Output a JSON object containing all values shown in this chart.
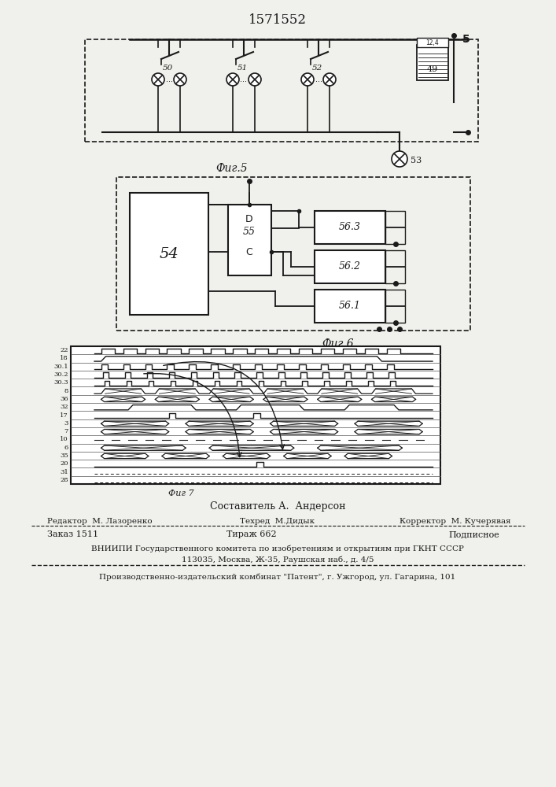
{
  "title": "1571552",
  "fig5_label": "Фиг.5",
  "fig6_label": "Фиг.6",
  "fig7_label": "Фиг 7",
  "composer": "Составитель А.  Андерсон",
  "editor": "Редактор  М. Лазоренко",
  "techred": "Техред  М.Дидык",
  "corrector": "Корректор  М. Кучерявая",
  "order": "Заказ 1511",
  "circulation": "Тираж 662",
  "subscription": "Подписное",
  "vniiipi": "ВНИИПИ Государственного комитета по изобретениям и открытиям при ГКНТ СССР",
  "address": "113035, Москва, Ж-35, Раушская наб., д. 4/5",
  "factory": "Производственно-издательский комбинат \"Патент\", г. Ужгород, ул. Гагарина, 101",
  "bg_color": "#f0f0ec",
  "line_color": "#1a1a1a",
  "timing_labels": [
    "22",
    "18",
    "30.1",
    "30.2",
    "30.3",
    "8",
    "36",
    "32",
    "17",
    "3",
    "7",
    "10",
    "6",
    "35",
    "20",
    "31",
    "28"
  ]
}
